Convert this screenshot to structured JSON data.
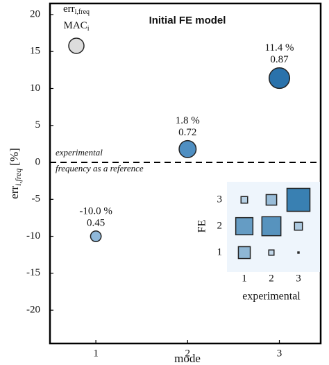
{
  "chart_data": {
    "type": "scatter",
    "title": "Initial FE model",
    "xlabel": "mode",
    "ylabel": {
      "main": "err",
      "sub": "i,freq",
      "unit": "[%]"
    },
    "x": [
      1,
      2,
      3
    ],
    "values": [
      -10.0,
      1.8,
      11.4
    ],
    "value_labels": [
      "-10.0 %",
      "1.8 %",
      "11.4 %"
    ],
    "sizes": [
      0.45,
      0.72,
      0.87
    ],
    "colors": [
      "#8fb8da",
      "#4f8fc2",
      "#2a72ab"
    ],
    "xlim": [
      0.5,
      3.45
    ],
    "ylim": [
      -24.5,
      21.5
    ],
    "xticks": [
      1,
      2,
      3
    ],
    "yticks": [
      -20,
      -15,
      -10,
      -5,
      0,
      5,
      10,
      15,
      20
    ],
    "reference_line": 0,
    "annotation": [
      "experimental",
      "frequency as a reference"
    ],
    "legend_labels": {
      "top": "err",
      "top_sub": "i,freq",
      "bottom": "MAC",
      "bottom_sub": "i"
    },
    "inset": {
      "xlabel": "experimental",
      "ylabel": "FE",
      "xticks": [
        1,
        2,
        3
      ],
      "yticks": [
        1,
        2,
        3
      ],
      "values": [
        [
          0.45,
          0.2,
          0.05
        ],
        [
          0.65,
          0.72,
          0.3
        ],
        [
          0.25,
          0.4,
          0.87
        ]
      ]
    }
  }
}
